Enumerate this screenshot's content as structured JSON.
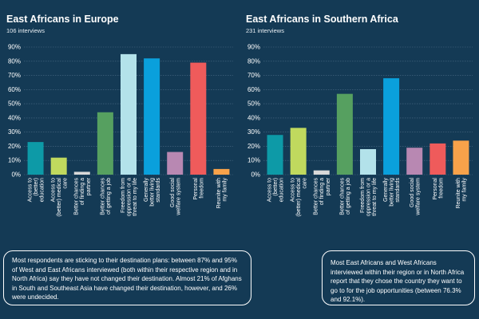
{
  "chart_data": [
    {
      "type": "bar",
      "title": "East Africans in Europe",
      "subtitle": "106 interviews",
      "ylim": [
        0,
        90
      ],
      "yticks": [
        "0%",
        "10%",
        "20%",
        "30%",
        "40%",
        "50%",
        "60%",
        "70%",
        "80%",
        "90%"
      ],
      "grid": true,
      "categories": [
        [
          "Access to",
          "(better)",
          "education"
        ],
        [
          "Access to",
          "(better) medical",
          "care"
        ],
        [
          "Better chances",
          "of finding a",
          "partner"
        ],
        [
          "Better chances",
          "of getting a job"
        ],
        [
          "Freedom from",
          "oppression or a",
          "threat to my life"
        ],
        [
          "Generally",
          "better living",
          "standards"
        ],
        [
          "Good social",
          "welfare system"
        ],
        [
          "Personal",
          "freedom"
        ],
        [
          "Reunite with",
          "my family"
        ]
      ],
      "values": [
        23,
        12,
        2,
        44,
        85,
        82,
        16,
        79,
        4
      ],
      "colors": [
        "#0d9aa7",
        "#c0d95e",
        "#d9d9d9",
        "#56a060",
        "#b3e2ea",
        "#0aa0dc",
        "#b888b2",
        "#ef5b5b",
        "#f7a24a"
      ]
    },
    {
      "type": "bar",
      "title": "East Africans in Southern Africa",
      "subtitle": "231 interviews",
      "ylim": [
        0,
        90
      ],
      "yticks": [
        "0%",
        "10%",
        "20%",
        "30%",
        "40%",
        "50%",
        "60%",
        "70%",
        "80%",
        "90%"
      ],
      "grid": true,
      "categories": [
        [
          "Access to",
          "(better)",
          "education"
        ],
        [
          "Access to",
          "(better) medical",
          "care"
        ],
        [
          "Better chances",
          "of finding a",
          "partner"
        ],
        [
          "Better chances",
          "of getting a job"
        ],
        [
          "Freedom from",
          "oppression or a",
          "threat to my life"
        ],
        [
          "Generally",
          "better living",
          "standards"
        ],
        [
          "Good social",
          "welfare system"
        ],
        [
          "Personal",
          "freedom"
        ],
        [
          "Reunite with",
          "my family"
        ]
      ],
      "values": [
        28,
        33,
        3,
        57,
        18,
        68,
        19,
        22,
        24
      ],
      "colors": [
        "#0d9aa7",
        "#c0d95e",
        "#d9d9d9",
        "#56a060",
        "#b3e2ea",
        "#0aa0dc",
        "#b888b2",
        "#ef5b5b",
        "#f7a24a"
      ]
    }
  ],
  "notes": {
    "left": "Most respondents are sticking to their destination plans: between 87% and 95% of West and East Africans interviewed (both within their respective region and in North Africa) say they have not changed their destination. Almost 21% of Afghans in South and Southeast Asia have changed their destination, however, and 26% were undecided.",
    "right": "Most East Africans and West Africans interviewed within their region or in North Africa report that they chose the country they want to go to for the job opportunities (between 76.3% and 92.1%)."
  }
}
